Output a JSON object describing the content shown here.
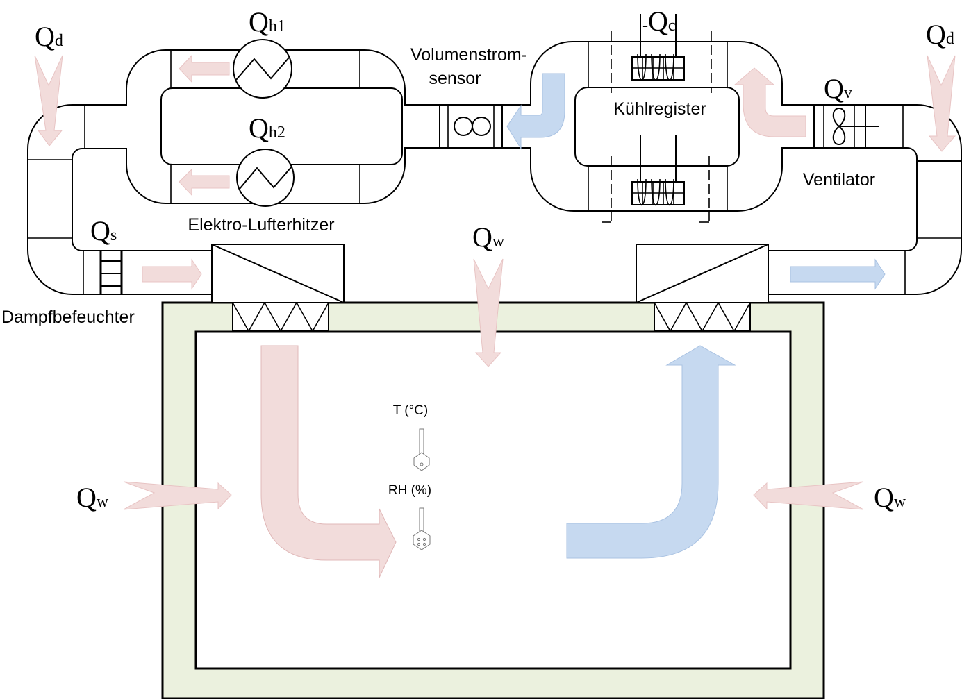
{
  "labels": {
    "volumenstrom_line1": "Volumenstrom-",
    "volumenstrom_line2": "sensor",
    "kuehlregister": "Kühlregister",
    "ventilator": "Ventilator",
    "elektro_lufterhitzer": "Elektro-Lufterhitzer",
    "dampfbefeuchter": "Dampfbefeuchter",
    "temperature": "T (°C)",
    "humidity": "RH (%)"
  },
  "heat_flows": {
    "qd_left": {
      "main": "Q",
      "sub": "d"
    },
    "qd_right": {
      "main": "Q",
      "sub": "d"
    },
    "qh1": {
      "main": "Q",
      "sub": "h1"
    },
    "qh2": {
      "main": "Q",
      "sub": "h2"
    },
    "qc": {
      "prefix": "-",
      "main": "Q",
      "sub": "c"
    },
    "qv": {
      "main": "Q",
      "sub": "v"
    },
    "qs": {
      "main": "Q",
      "sub": "s"
    },
    "qw_top": {
      "main": "Q",
      "sub": "w"
    },
    "qw_left": {
      "main": "Q",
      "sub": "w"
    },
    "qw_right": {
      "main": "Q",
      "sub": "w"
    }
  },
  "colors": {
    "warm_air": "#f2dcdb",
    "cool_air": "#c6d9f0",
    "wall": "#ebf1de",
    "outline": "#000000"
  }
}
